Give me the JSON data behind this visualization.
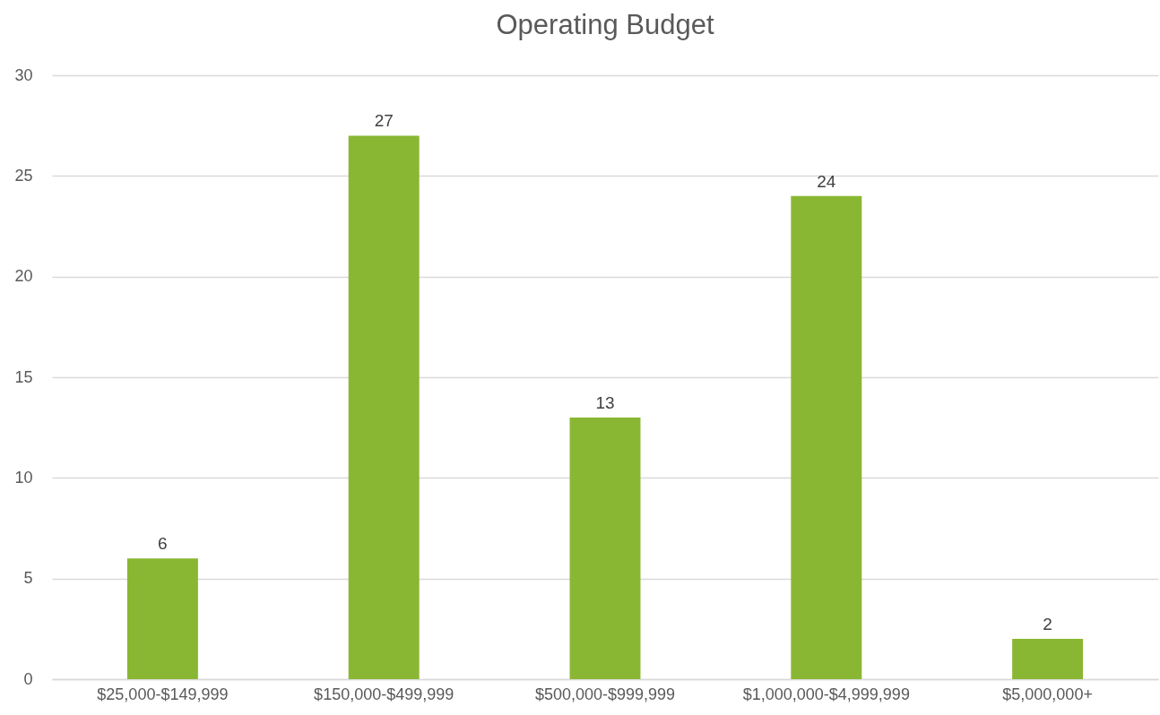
{
  "chart_data": {
    "type": "bar",
    "title": "Operating Budget",
    "categories": [
      "$25,000-$149,999",
      "$150,000-$499,999",
      "$500,000-$999,999",
      "$1,000,000-$4,999,999",
      "$5,000,000+"
    ],
    "values": [
      6,
      27,
      13,
      24,
      2
    ],
    "color": "#8ab733",
    "ylim": [
      0,
      30
    ],
    "yticks": [
      0,
      5,
      10,
      15,
      20,
      25,
      30
    ],
    "grid": "y",
    "data_labels": true
  }
}
